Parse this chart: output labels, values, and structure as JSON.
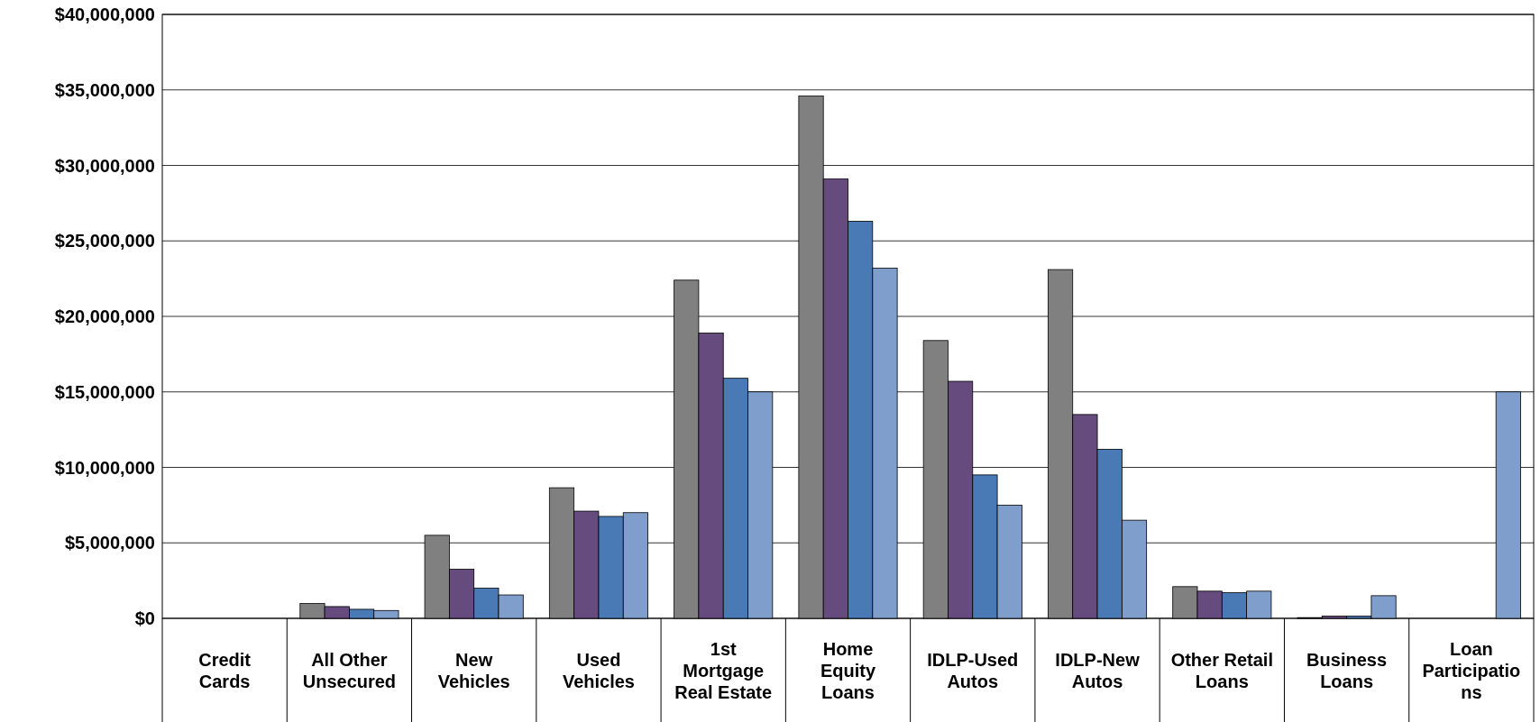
{
  "chart_data": {
    "type": "bar",
    "categories": [
      "Credit Cards",
      "All Other Unsecured",
      "New Vehicles",
      "Used Vehicles",
      "1st Mortgage Real Estate",
      "Home Equity Loans",
      "IDLP-Used Autos",
      "IDLP-New Autos",
      "Other Retail Loans",
      "Business Loans",
      "Loan Participations"
    ],
    "series": [
      {
        "color": "#808080",
        "values": [
          0,
          980000,
          5500000,
          8650000,
          22400000,
          34600000,
          18400000,
          23100000,
          2100000,
          50000,
          0
        ]
      },
      {
        "color": "#664b7e",
        "values": [
          0,
          780000,
          3250000,
          7100000,
          18900000,
          29100000,
          15700000,
          13500000,
          1800000,
          150000,
          0
        ]
      },
      {
        "color": "#4a7ab5",
        "values": [
          0,
          600000,
          2000000,
          6750000,
          15900000,
          26300000,
          9500000,
          11200000,
          1700000,
          150000,
          0
        ]
      },
      {
        "color": "#7f9ecb",
        "values": [
          0,
          520000,
          1550000,
          7000000,
          15000000,
          23200000,
          7500000,
          6500000,
          1800000,
          1500000,
          15000000
        ]
      }
    ],
    "ylim": [
      0,
      40000000
    ],
    "yticks": [
      {
        "value": 0,
        "label": "$0"
      },
      {
        "value": 5000000,
        "label": "$5,000,000"
      },
      {
        "value": 10000000,
        "label": "$10,000,000"
      },
      {
        "value": 15000000,
        "label": "$15,000,000"
      },
      {
        "value": 20000000,
        "label": "$20,000,000"
      },
      {
        "value": 25000000,
        "label": "$25,000,000"
      },
      {
        "value": 30000000,
        "label": "$30,000,000"
      },
      {
        "value": 35000000,
        "label": "$35,000,000"
      },
      {
        "value": 40000000,
        "label": "$40,000,000"
      }
    ],
    "grid": "y"
  }
}
